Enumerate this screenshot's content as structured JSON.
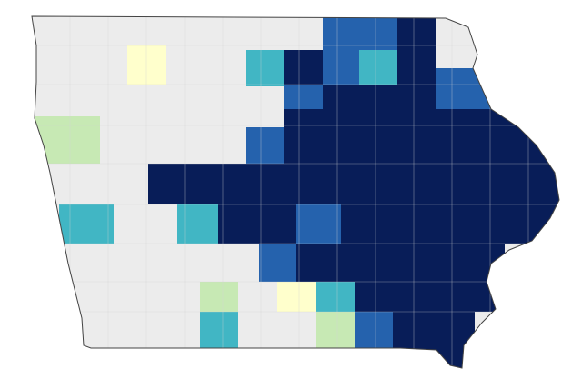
{
  "map": {
    "base_color": "#ececec",
    "border_color": "#444444",
    "line_color": "#d4d4d4",
    "regions": [
      {
        "color": "#ffffcc"
      },
      {
        "color": "#41b6c4"
      },
      {
        "color": "#081d58"
      },
      {
        "color": "#2562ad"
      },
      {
        "color": "#2562ad"
      },
      {
        "color": "#081d58"
      },
      {
        "color": "#2562ad"
      },
      {
        "color": "#41b6c4"
      },
      {
        "color": "#2562ad"
      },
      {
        "color": "#081d58"
      },
      {
        "color": "#2562ad"
      },
      {
        "color": "#2562ad"
      },
      {
        "color": "#c7e9b4"
      },
      {
        "color": "#081d58"
      },
      {
        "color": "#081d58"
      },
      {
        "color": "#41b6c4"
      },
      {
        "color": "#41b6c4"
      },
      {
        "color": "#081d58"
      },
      {
        "color": "#2562ad"
      },
      {
        "color": "#081d58"
      },
      {
        "color": "#2562ad"
      },
      {
        "color": "#081d58"
      },
      {
        "color": "#c7e9b4"
      },
      {
        "color": "#ffffcc"
      },
      {
        "color": "#41b6c4"
      },
      {
        "color": "#081d58"
      },
      {
        "color": "#41b6c4"
      },
      {
        "color": "#c7e9b4"
      },
      {
        "color": "#2562ad"
      },
      {
        "color": "#081d58"
      }
    ]
  }
}
